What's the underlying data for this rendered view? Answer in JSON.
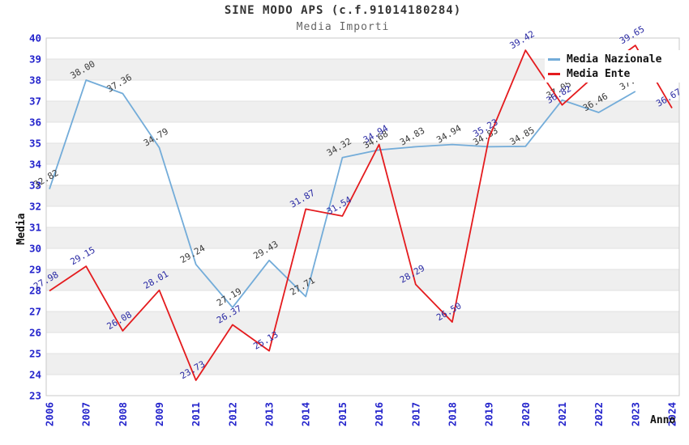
{
  "header": {
    "title": "SINE MODO APS (c.f.91014180284)",
    "subtitle": "Media Importi"
  },
  "legend": {
    "items": [
      {
        "label": "Media Nazionale",
        "color": "#73acd9"
      },
      {
        "label": "Media Ente",
        "color": "#e41b1e"
      }
    ]
  },
  "chart_data": {
    "type": "line",
    "title": "SINE MODO APS (c.f.91014180284)",
    "subtitle": "Media Importi",
    "xlabel": "Anno",
    "ylabel": "Media",
    "x": [
      "2006",
      "2007",
      "2008",
      "2009",
      "2011",
      "2012",
      "2013",
      "2014",
      "2015",
      "2016",
      "2017",
      "2018",
      "2019",
      "2020",
      "2021",
      "2022",
      "2023",
      "2024"
    ],
    "ylim": [
      23,
      40
    ],
    "ytick_step": 1,
    "y_ticks": [
      23,
      24,
      25,
      26,
      27,
      28,
      29,
      30,
      31,
      32,
      33,
      34,
      35,
      36,
      37,
      38,
      39,
      40
    ],
    "grid": "horizontal-bands",
    "legend_position": "top-right",
    "series": [
      {
        "name": "Media Nazionale",
        "color": "#73acd9",
        "label_color": "#3a3a3a",
        "values": [
          32.82,
          38.0,
          37.36,
          34.79,
          29.24,
          27.19,
          29.43,
          27.71,
          34.32,
          34.68,
          34.83,
          34.94,
          34.83,
          34.85,
          37.05,
          36.46,
          37.46,
          null
        ]
      },
      {
        "name": "Media Ente",
        "color": "#e41b1e",
        "label_color": "#2a2aa4",
        "values": [
          27.98,
          29.15,
          26.08,
          28.01,
          23.73,
          26.37,
          25.13,
          31.87,
          31.54,
          34.94,
          28.29,
          26.5,
          35.23,
          39.42,
          36.82,
          38.38,
          39.65,
          36.67
        ]
      }
    ],
    "colors": {
      "tick_label": "#2424cc",
      "band": "#efefef",
      "gridline": "#e2e2e2",
      "plot_border": "#c9c9c9",
      "axis_title": "#111111"
    }
  }
}
